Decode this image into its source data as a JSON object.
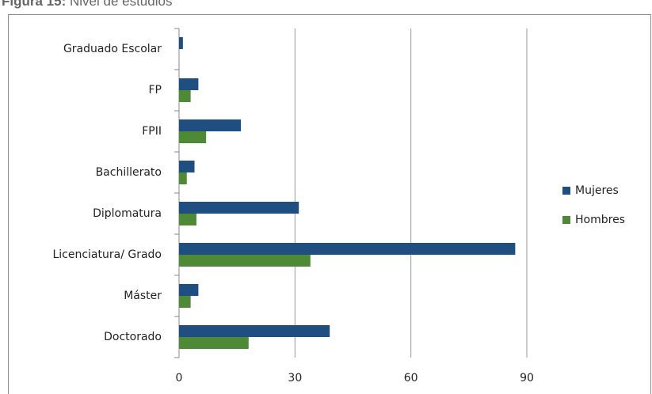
{
  "chart_data": {
    "type": "barh",
    "title_label": "Figura 15:",
    "title": "Nivel de estudios",
    "categories": [
      "Graduado Escolar",
      "FP",
      "FPII",
      "Bachillerato",
      "Diplomatura",
      "Licenciatura/ Grado",
      "Máster",
      "Doctorado"
    ],
    "series": [
      {
        "name": "Mujeres",
        "color": "#1f4e80",
        "values": [
          1,
          5,
          16,
          4,
          31,
          87,
          5,
          39
        ]
      },
      {
        "name": "Hombres",
        "color": "#4e8a35",
        "values": [
          0,
          3,
          7,
          2,
          4.5,
          34,
          3,
          18
        ]
      }
    ],
    "xlim": [
      0,
      90
    ],
    "xticks": [
      0,
      30,
      60,
      90
    ],
    "grid": true,
    "legend": "right"
  }
}
